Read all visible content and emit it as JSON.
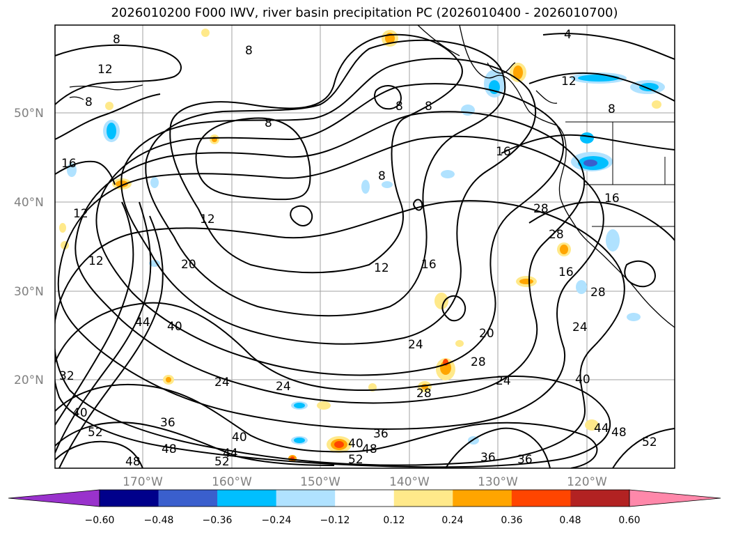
{
  "title": "2026010200 F000 IWV, river basin precipitation PC (2026010400 - 2026010700)",
  "map": {
    "lat_labels": [
      "50°N",
      "40°N",
      "30°N",
      "20°N"
    ],
    "lon_labels": [
      "170°W",
      "160°W",
      "150°W",
      "140°W",
      "130°W",
      "120°W"
    ],
    "gridlines": true,
    "contour_field": "IWV",
    "contour_labels": [
      "8",
      "8",
      "8",
      "8",
      "8",
      "8",
      "4",
      "12",
      "12",
      "12",
      "12",
      "12",
      "12",
      "16",
      "16",
      "16",
      "16",
      "16",
      "20",
      "20",
      "24",
      "24",
      "24",
      "24",
      "24",
      "28",
      "28",
      "28",
      "28",
      "28",
      "32",
      "36",
      "36",
      "36",
      "36",
      "40",
      "40",
      "40",
      "40",
      "40",
      "44",
      "44",
      "44",
      "48",
      "48",
      "48",
      "48",
      "52",
      "52",
      "52",
      "52"
    ]
  },
  "colorbar": {
    "ticks": [
      "−0.60",
      "−0.48",
      "−0.36",
      "−0.24",
      "−0.12",
      "0.12",
      "0.24",
      "0.36",
      "0.48",
      "0.60"
    ],
    "colors": [
      "#9932CC",
      "#00008B",
      "#3A5FCD",
      "#00BFFF",
      "#B0E2FF",
      "#FFFFFF",
      "#FFE98A",
      "#FFA500",
      "#FF4500",
      "#B22222",
      "#FF88AA"
    ]
  }
}
